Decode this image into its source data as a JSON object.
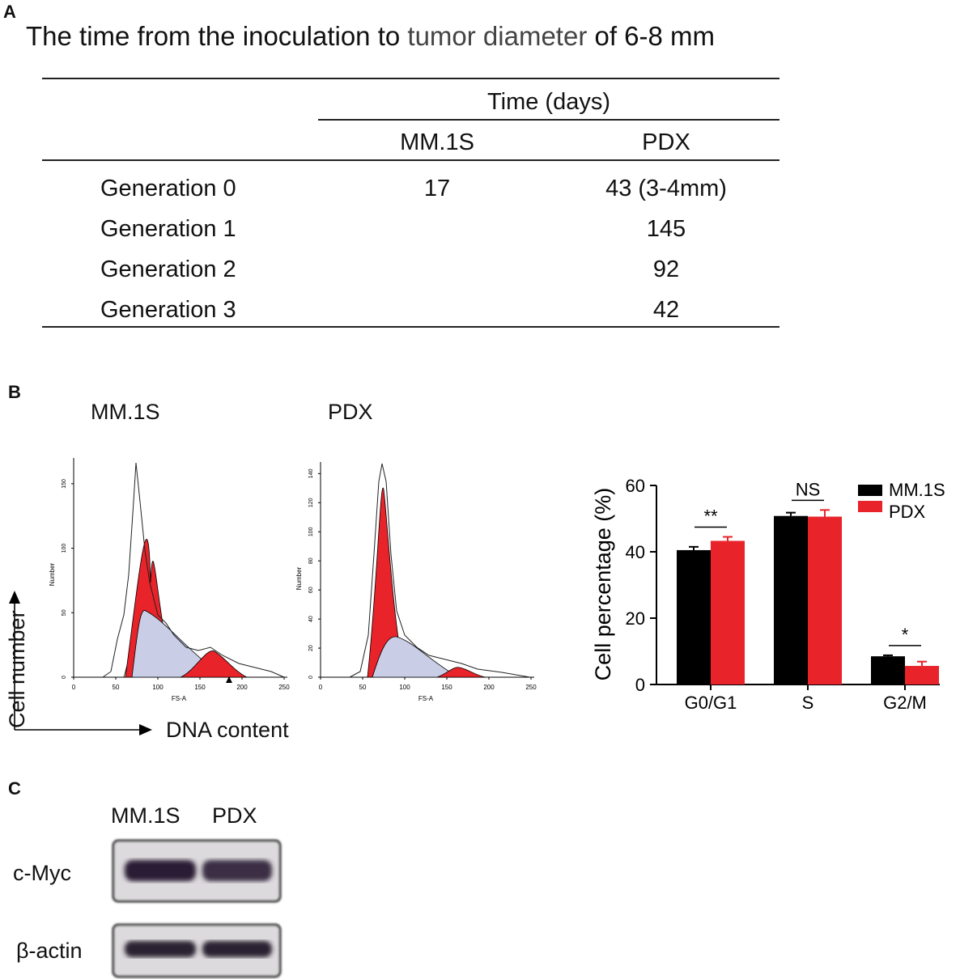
{
  "panel_a": {
    "label": "A",
    "title_main": "The time from the inoculation to ",
    "title_accent": "tumor diameter",
    "title_end": " of 6-8 mm",
    "table": {
      "group_header": "Time (days)",
      "columns": [
        "MM.1S",
        "PDX"
      ],
      "rows": [
        {
          "label": "Generation 0",
          "mm1s": "17",
          "pdx": "43 (3-4mm)"
        },
        {
          "label": "Generation 1",
          "mm1s": "",
          "pdx": "145"
        },
        {
          "label": "Generation 2",
          "mm1s": "",
          "pdx": "92"
        },
        {
          "label": "Generation 3",
          "mm1s": "",
          "pdx": "42"
        }
      ]
    }
  },
  "panel_b": {
    "label": "B",
    "histograms": [
      {
        "title": "MM.1S",
        "ylabel": "Number",
        "xlabel": "FS-A",
        "yticks": [
          "0",
          "50",
          "100",
          "150"
        ],
        "xticks": [
          "0",
          "50",
          "100",
          "150",
          "200",
          "250"
        ]
      },
      {
        "title": "PDX",
        "ylabel": "Number",
        "xlabel": "FS-A",
        "yticks": [
          "0",
          "20",
          "40",
          "60",
          "80",
          "100",
          "120",
          "140"
        ],
        "xticks": [
          "0",
          "50",
          "100",
          "150",
          "200",
          "250"
        ]
      }
    ],
    "axis_y_label": "Cell number",
    "axis_x_label": "DNA content"
  },
  "chart_data": {
    "type": "bar",
    "categories": [
      "G0/G1",
      "S",
      "G2/M"
    ],
    "series": [
      {
        "name": "MM.1S",
        "values": [
          40.5,
          50.8,
          8.5
        ],
        "errors": [
          1.0,
          1.0,
          0.3
        ],
        "color": "#000000"
      },
      {
        "name": "PDX",
        "values": [
          43.3,
          50.6,
          5.6
        ],
        "errors": [
          1.2,
          2.0,
          1.3
        ],
        "color": "#e8232a"
      }
    ],
    "ylabel": "Cell percentage (%)",
    "ylim": [
      0,
      60
    ],
    "yticks": [
      "0",
      "20",
      "40",
      "60"
    ],
    "significance": [
      "**",
      "NS",
      "*"
    ],
    "legend_position": "top-right"
  },
  "panel_c": {
    "label": "C",
    "lanes": [
      "MM.1S",
      "PDX"
    ],
    "rows": [
      "c-Myc",
      "β-actin"
    ]
  }
}
